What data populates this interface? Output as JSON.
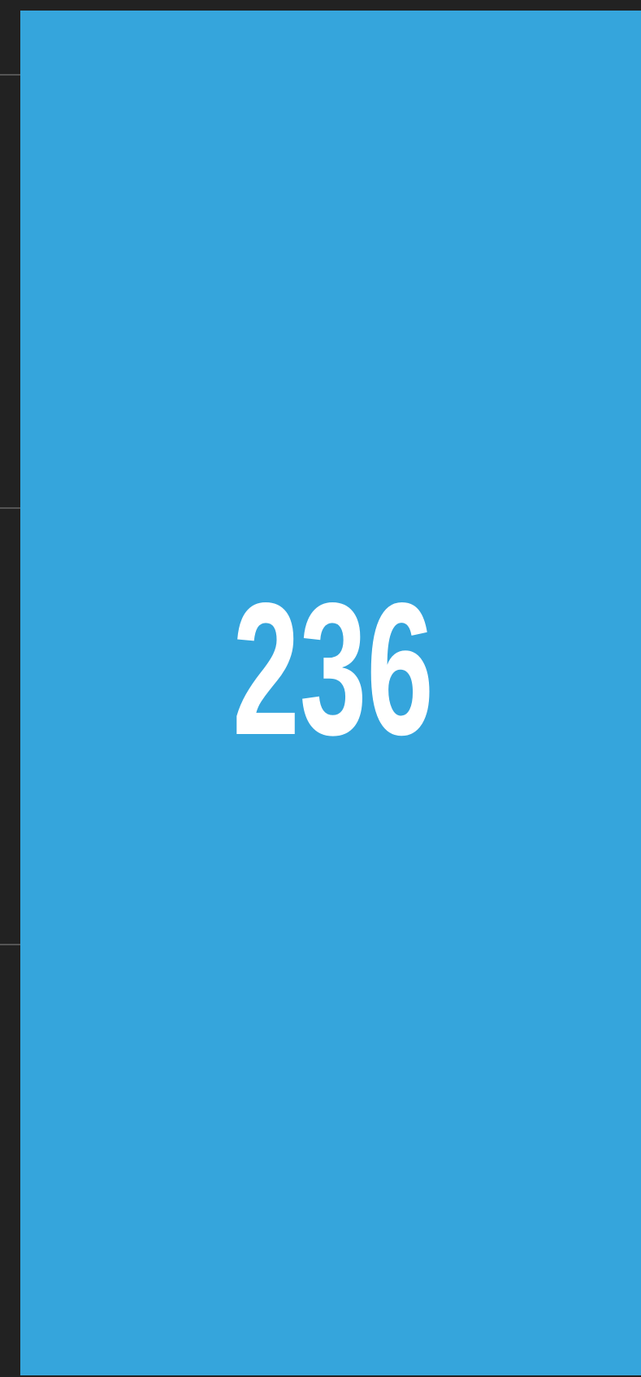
{
  "screen": {
    "value": 236
  }
}
